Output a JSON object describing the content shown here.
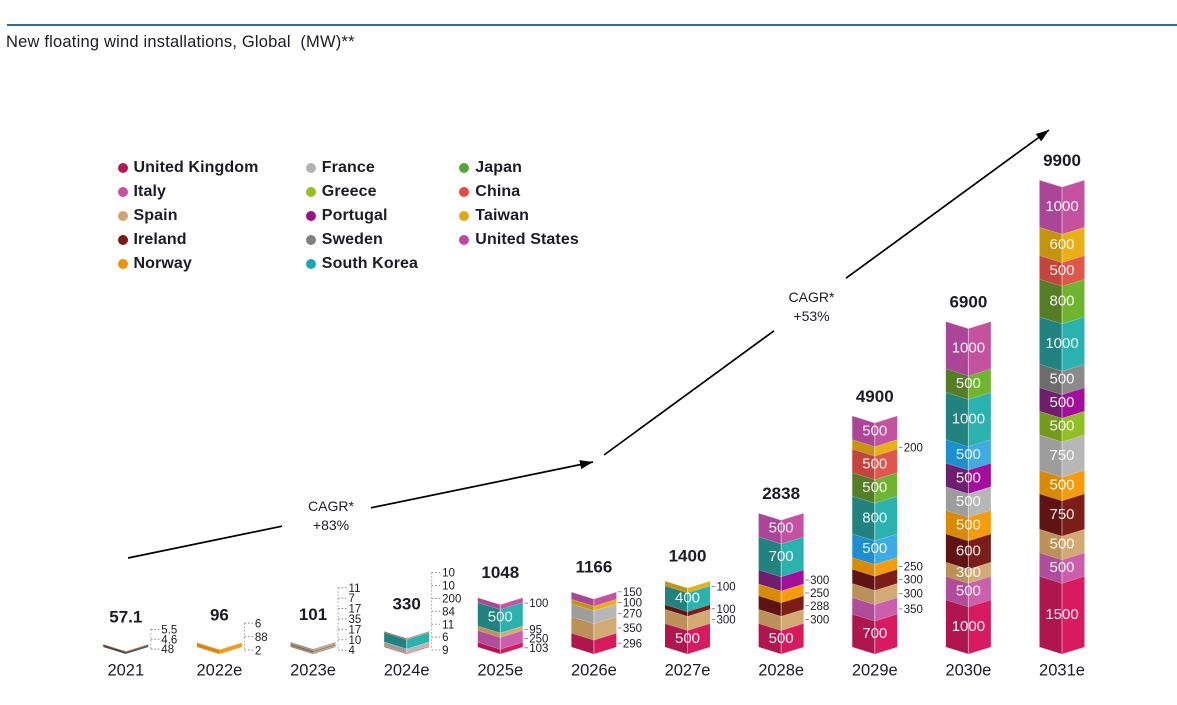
{
  "page": {
    "title": "New floating wind installations, Global  (MW)**",
    "background": "#ffffff",
    "text_color": "#1c1c26",
    "rule_color": "#2e6d99",
    "arrow_color": "#000000"
  },
  "palette": {
    "uk": {
      "name": "United Kingdom",
      "dot": "#b11a56",
      "left": "#b0164e",
      "right": "#d81a5e"
    },
    "italy": {
      "name": "Italy",
      "dot": "#c94fa4",
      "left": "#b04d9a",
      "right": "#cb5fac"
    },
    "spain": {
      "name": "Spain",
      "dot": "#d2a46f",
      "left": "#bb9159",
      "right": "#d2ab74"
    },
    "ireland": {
      "name": "Ireland",
      "dot": "#7a1a17",
      "left": "#5f1413",
      "right": "#7d1d17"
    },
    "norway": {
      "name": "Norway",
      "dot": "#f29104",
      "left": "#d88a04",
      "right": "#f49c0d"
    },
    "france": {
      "name": "France",
      "dot": "#b3b3b3",
      "left": "#9d9d9d",
      "right": "#b7b7b7"
    },
    "greece": {
      "name": "Greece",
      "dot": "#95c11f",
      "left": "#74991c",
      "right": "#90c026"
    },
    "portugal": {
      "name": "Portugal",
      "dot": "#9c0f8a",
      "left": "#6f1e6e",
      "right": "#a30f9c"
    },
    "sweden": {
      "name": "Sweden",
      "dot": "#818181",
      "left": "#6c6c6c",
      "right": "#8b8b8b"
    },
    "south_korea": {
      "name": "South Korea",
      "dot": "#1aa8b0",
      "left": "#21827f",
      "right": "#2ab2ae"
    },
    "japan": {
      "name": "Japan",
      "dot": "#56a635",
      "left": "#557d26",
      "right": "#70b52f"
    },
    "china": {
      "name": "China",
      "dot": "#e04c41",
      "left": "#c4453d",
      "right": "#df584d"
    },
    "taiwan": {
      "name": "Taiwan",
      "dot": "#e0a812",
      "left": "#c6930e",
      "right": "#e8b016"
    },
    "us": {
      "name": "United States",
      "dot": "#bc48a8",
      "left": "#aa4597",
      "right": "#c452a0"
    },
    "blue_alt": {
      "name": "Sweden",
      "dot": "#3fabe4",
      "left": "#1d8fd0",
      "right": "#3fabe4"
    },
    "dark_alt": {
      "name": "United Kingdom",
      "dot": "#5a5c60",
      "left": "#46484c",
      "right": "#5a5c60"
    }
  },
  "legend": {
    "columns": [
      [
        {
          "label": "United Kingdom",
          "color_key": "uk"
        },
        {
          "label": "Italy",
          "color_key": "italy"
        },
        {
          "label": "Spain",
          "color_key": "spain"
        },
        {
          "label": "Ireland",
          "color_key": "ireland"
        },
        {
          "label": "Norway",
          "color_key": "norway"
        }
      ],
      [
        {
          "label": "France",
          "color_key": "france"
        },
        {
          "label": "Greece",
          "color_key": "greece"
        },
        {
          "label": "Portugal",
          "color_key": "portugal"
        },
        {
          "label": "Sweden",
          "color_key": "sweden"
        },
        {
          "label": "South Korea",
          "color_key": "south_korea"
        }
      ],
      [
        {
          "label": "Japan",
          "color_key": "japan"
        },
        {
          "label": "China",
          "color_key": "china"
        },
        {
          "label": "Taiwan",
          "color_key": "taiwan"
        },
        {
          "label": "United States",
          "color_key": "us"
        }
      ]
    ]
  },
  "annotations": [
    {
      "line1": "CAGR*",
      "line2": "+83%"
    },
    {
      "line1": "CAGR*",
      "line2": "+53%"
    }
  ],
  "chart_data": {
    "type": "bar",
    "stacked": true,
    "title": "New floating wind installations, Global  (MW)**",
    "unit": "MW",
    "xlabel": "",
    "ylabel": "New floating wind installations (MW)",
    "ylim": [
      0,
      9900
    ],
    "grid": false,
    "legend_position": "upper-left",
    "categories": [
      "2021",
      "2022e",
      "2023e",
      "2024e",
      "2025e",
      "2026e",
      "2027e",
      "2028e",
      "2029e",
      "2030e",
      "2031e"
    ],
    "totals": [
      57.1,
      96,
      101,
      330,
      1048,
      1166,
      1400,
      2838,
      4900,
      6900,
      9900
    ],
    "note": "segments listed bottom-to-top; label: inside = white value on segment, callout = value with tick to the right of the bar",
    "bars": [
      {
        "year": "2021",
        "total": 57.1,
        "total_display": "57.1",
        "segments": [
          {
            "country": "United Kingdom",
            "value": 48,
            "display": "48",
            "color_key": "dark_alt",
            "label": "callout"
          },
          {
            "country": "Norway",
            "value": 4.6,
            "display": "4.6",
            "color_key": "norway",
            "label": "callout"
          },
          {
            "country": "China",
            "value": 5.5,
            "display": "5.5",
            "color_key": "china",
            "label": "callout"
          }
        ]
      },
      {
        "year": "2022e",
        "total": 96,
        "total_display": "96",
        "segments": [
          {
            "country": "United Kingdom",
            "value": 2,
            "display": "2",
            "color_key": "uk",
            "label": "callout"
          },
          {
            "country": "Norway",
            "value": 88,
            "display": "88",
            "color_key": "norway",
            "label": "callout"
          },
          {
            "country": "France",
            "value": 6,
            "display": "6",
            "color_key": "france",
            "label": "callout"
          }
        ]
      },
      {
        "year": "2023e",
        "total": 101,
        "total_display": "101",
        "segments": [
          {
            "country": "Norway",
            "value": 4,
            "display": "4",
            "color_key": "norway",
            "label": "callout"
          },
          {
            "country": "Ireland",
            "value": 10,
            "display": "10",
            "color_key": "ireland",
            "label": "callout"
          },
          {
            "country": "Spain",
            "value": 17,
            "display": "17",
            "color_key": "spain",
            "label": "callout"
          },
          {
            "country": "Sweden",
            "value": 35,
            "display": "35",
            "color_key": "sweden",
            "label": "callout"
          },
          {
            "country": "France",
            "value": 17,
            "display": "17",
            "color_key": "france",
            "label": "callout"
          },
          {
            "country": "Japan",
            "value": 7,
            "display": "7",
            "color_key": "japan",
            "label": "callout"
          },
          {
            "country": "China",
            "value": 11,
            "display": "11",
            "color_key": "china",
            "label": "callout"
          }
        ]
      },
      {
        "year": "2024e",
        "total": 330,
        "total_display": "330",
        "segments": [
          {
            "country": "United Kingdom",
            "value": 9,
            "display": "9",
            "color_key": "uk",
            "label": "callout"
          },
          {
            "country": "Italy",
            "value": 6,
            "display": "6",
            "color_key": "italy",
            "label": "callout"
          },
          {
            "country": "Norway",
            "value": 11,
            "display": "11",
            "color_key": "norway",
            "label": "callout"
          },
          {
            "country": "France",
            "value": 84,
            "display": "84",
            "color_key": "france",
            "label": "callout"
          },
          {
            "country": "South Korea",
            "value": 200,
            "display": "200",
            "color_key": "south_korea",
            "label": "callout"
          },
          {
            "country": "Japan",
            "value": 10,
            "display": "10",
            "color_key": "japan",
            "label": "callout"
          },
          {
            "country": "United States",
            "value": 10,
            "display": "10",
            "color_key": "us",
            "label": "callout"
          }
        ]
      },
      {
        "year": "2025e",
        "total": 1048,
        "total_display": "1048",
        "segments": [
          {
            "country": "United Kingdom",
            "value": 103,
            "display": "103",
            "color_key": "uk",
            "label": "callout"
          },
          {
            "country": "Italy",
            "value": 250,
            "display": "250",
            "color_key": "italy",
            "label": "callout"
          },
          {
            "country": "Spain",
            "value": 95,
            "display": "95",
            "color_key": "spain",
            "label": "callout"
          },
          {
            "country": "South Korea",
            "value": 500,
            "display": "500",
            "color_key": "south_korea",
            "label": "inside"
          },
          {
            "country": "United States",
            "value": 100,
            "display": "100",
            "color_key": "us",
            "label": "callout"
          }
        ]
      },
      {
        "year": "2026e",
        "total": 1166,
        "total_display": "1166",
        "segments": [
          {
            "country": "United Kingdom",
            "value": 296,
            "display": "296",
            "color_key": "uk",
            "label": "callout"
          },
          {
            "country": "Spain",
            "value": 350,
            "display": "350",
            "color_key": "spain",
            "label": "callout"
          },
          {
            "country": "France",
            "value": 270,
            "display": "270",
            "color_key": "france",
            "label": "callout"
          },
          {
            "country": "Taiwan",
            "value": 100,
            "display": "100",
            "color_key": "taiwan",
            "label": "callout"
          },
          {
            "country": "United States",
            "value": 150,
            "display": "150",
            "color_key": "us",
            "label": "callout"
          }
        ]
      },
      {
        "year": "2027e",
        "total": 1400,
        "total_display": "1400",
        "segments": [
          {
            "country": "United Kingdom",
            "value": 500,
            "display": "500",
            "color_key": "uk",
            "label": "inside"
          },
          {
            "country": "Spain",
            "value": 300,
            "display": "300",
            "color_key": "spain",
            "label": "callout"
          },
          {
            "country": "Ireland",
            "value": 100,
            "display": "100",
            "color_key": "ireland",
            "label": "callout"
          },
          {
            "country": "South Korea",
            "value": 400,
            "display": "400",
            "color_key": "south_korea",
            "label": "inside"
          },
          {
            "country": "Taiwan",
            "value": 100,
            "display": "100",
            "color_key": "taiwan",
            "label": "callout"
          }
        ]
      },
      {
        "year": "2028e",
        "total": 2838,
        "total_display": "2838",
        "segments": [
          {
            "country": "United Kingdom",
            "value": 500,
            "display": "500",
            "color_key": "uk",
            "label": "inside"
          },
          {
            "country": "Spain",
            "value": 300,
            "display": "300",
            "color_key": "spain",
            "label": "callout"
          },
          {
            "country": "Ireland",
            "value": 288,
            "display": "288",
            "color_key": "ireland",
            "label": "callout"
          },
          {
            "country": "Norway",
            "value": 250,
            "display": "250",
            "color_key": "norway",
            "label": "callout"
          },
          {
            "country": "Portugal",
            "value": 300,
            "display": "300",
            "color_key": "portugal",
            "label": "callout"
          },
          {
            "country": "South Korea",
            "value": 700,
            "display": "700",
            "color_key": "south_korea",
            "label": "inside"
          },
          {
            "country": "United States",
            "value": 500,
            "display": "500",
            "color_key": "us",
            "label": "inside"
          }
        ]
      },
      {
        "year": "2029e",
        "total": 4900,
        "total_display": "4900",
        "segments": [
          {
            "country": "United Kingdom",
            "value": 700,
            "display": "700",
            "color_key": "uk",
            "label": "inside"
          },
          {
            "country": "Italy",
            "value": 350,
            "display": "350",
            "color_key": "italy",
            "label": "callout"
          },
          {
            "country": "Spain",
            "value": 300,
            "display": "300",
            "color_key": "spain",
            "label": "callout"
          },
          {
            "country": "Ireland",
            "value": 300,
            "display": "300",
            "color_key": "ireland",
            "label": "callout"
          },
          {
            "country": "Norway",
            "value": 250,
            "display": "250",
            "color_key": "norway",
            "label": "callout"
          },
          {
            "country": "Sweden",
            "value": 500,
            "display": "500",
            "color_key": "blue_alt",
            "label": "inside"
          },
          {
            "country": "South Korea",
            "value": 800,
            "display": "800",
            "color_key": "south_korea",
            "label": "inside"
          },
          {
            "country": "Japan",
            "value": 500,
            "display": "500",
            "color_key": "japan",
            "label": "inside"
          },
          {
            "country": "China",
            "value": 500,
            "display": "500",
            "color_key": "china",
            "label": "inside"
          },
          {
            "country": "Taiwan",
            "value": 200,
            "display": "200",
            "color_key": "taiwan",
            "label": "callout"
          },
          {
            "country": "United States",
            "value": 500,
            "display": "500",
            "color_key": "us",
            "label": "inside"
          }
        ]
      },
      {
        "year": "2030e",
        "total": 6900,
        "total_display": "6900",
        "segments": [
          {
            "country": "United Kingdom",
            "value": 1000,
            "display": "1000",
            "color_key": "uk",
            "label": "inside"
          },
          {
            "country": "Italy",
            "value": 500,
            "display": "500",
            "color_key": "italy",
            "label": "inside"
          },
          {
            "country": "Spain",
            "value": 300,
            "display": "300",
            "color_key": "spain",
            "label": "inside"
          },
          {
            "country": "Ireland",
            "value": 600,
            "display": "600",
            "color_key": "ireland",
            "label": "inside"
          },
          {
            "country": "Norway",
            "value": 500,
            "display": "500",
            "color_key": "norway",
            "label": "inside"
          },
          {
            "country": "France",
            "value": 500,
            "display": "500",
            "color_key": "france",
            "label": "inside"
          },
          {
            "country": "Portugal",
            "value": 500,
            "display": "500",
            "color_key": "portugal",
            "label": "inside"
          },
          {
            "country": "Sweden",
            "value": 500,
            "display": "500",
            "color_key": "blue_alt",
            "label": "inside"
          },
          {
            "country": "South Korea",
            "value": 1000,
            "display": "1000",
            "color_key": "south_korea",
            "label": "inside"
          },
          {
            "country": "Japan",
            "value": 500,
            "display": "500",
            "color_key": "japan",
            "label": "inside"
          },
          {
            "country": "United States",
            "value": 1000,
            "display": "1000",
            "color_key": "us",
            "label": "inside"
          }
        ]
      },
      {
        "year": "2031e",
        "total": 9900,
        "total_display": "9900",
        "segments": [
          {
            "country": "United Kingdom",
            "value": 1500,
            "display": "1500",
            "color_key": "uk",
            "label": "inside"
          },
          {
            "country": "Italy",
            "value": 500,
            "display": "500",
            "color_key": "italy",
            "label": "inside"
          },
          {
            "country": "Spain",
            "value": 500,
            "display": "500",
            "color_key": "spain",
            "label": "inside"
          },
          {
            "country": "Ireland",
            "value": 750,
            "display": "750",
            "color_key": "ireland",
            "label": "inside"
          },
          {
            "country": "Norway",
            "value": 500,
            "display": "500",
            "color_key": "norway",
            "label": "inside"
          },
          {
            "country": "France",
            "value": 750,
            "display": "750",
            "color_key": "france",
            "label": "inside"
          },
          {
            "country": "Greece",
            "value": 500,
            "display": "500",
            "color_key": "greece",
            "label": "inside"
          },
          {
            "country": "Portugal",
            "value": 500,
            "display": "500",
            "color_key": "portugal",
            "label": "inside"
          },
          {
            "country": "Sweden",
            "value": 500,
            "display": "500",
            "color_key": "sweden",
            "label": "inside"
          },
          {
            "country": "South Korea",
            "value": 1000,
            "display": "1000",
            "color_key": "south_korea",
            "label": "inside"
          },
          {
            "country": "Japan",
            "value": 800,
            "display": "800",
            "color_key": "japan",
            "label": "inside"
          },
          {
            "country": "China",
            "value": 500,
            "display": "500",
            "color_key": "china",
            "label": "inside"
          },
          {
            "country": "Taiwan",
            "value": 600,
            "display": "600",
            "color_key": "taiwan",
            "label": "inside"
          },
          {
            "country": "United States",
            "value": 1000,
            "display": "1000",
            "color_key": "us",
            "label": "inside"
          }
        ]
      }
    ]
  }
}
